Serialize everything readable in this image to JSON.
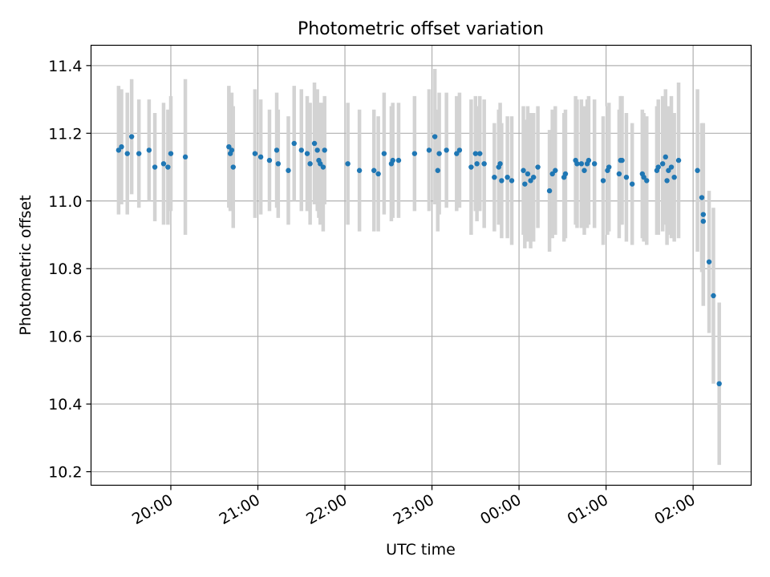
{
  "chart_data": {
    "type": "scatter",
    "title": "Photometric offset variation",
    "xlabel": "UTC time",
    "ylabel": "Photometric offset",
    "x_is_time": true,
    "xlim": [
      "19:05",
      "02:40"
    ],
    "ylim": [
      10.16,
      11.46
    ],
    "xticks": [
      "20:00",
      "21:00",
      "22:00",
      "23:00",
      "00:00",
      "01:00",
      "02:00"
    ],
    "yticks": [
      "10.2",
      "10.4",
      "10.6",
      "10.8",
      "11.0",
      "11.2",
      "11.4"
    ],
    "grid": true,
    "marker_color": "#1f77b4",
    "errorbar_color": "#d3d3d3",
    "points": [
      {
        "x": "19:24",
        "y": 11.15,
        "err": 0.19
      },
      {
        "x": "19:26",
        "y": 11.16,
        "err": 0.17
      },
      {
        "x": "19:30",
        "y": 11.14,
        "err": 0.18
      },
      {
        "x": "19:33",
        "y": 11.19,
        "err": 0.17
      },
      {
        "x": "19:38",
        "y": 11.14,
        "err": 0.16
      },
      {
        "x": "19:45",
        "y": 11.15,
        "err": 0.15
      },
      {
        "x": "19:49",
        "y": 11.1,
        "err": 0.16
      },
      {
        "x": "19:55",
        "y": 11.11,
        "err": 0.18
      },
      {
        "x": "19:58",
        "y": 11.1,
        "err": 0.17
      },
      {
        "x": "20:00",
        "y": 11.14,
        "err": 0.17
      },
      {
        "x": "20:10",
        "y": 11.13,
        "err": 0.23
      },
      {
        "x": "20:40",
        "y": 11.16,
        "err": 0.18
      },
      {
        "x": "20:41",
        "y": 11.14,
        "err": 0.17
      },
      {
        "x": "20:42",
        "y": 11.15,
        "err": 0.17
      },
      {
        "x": "20:43",
        "y": 11.1,
        "err": 0.18
      },
      {
        "x": "20:58",
        "y": 11.14,
        "err": 0.19
      },
      {
        "x": "21:02",
        "y": 11.13,
        "err": 0.17
      },
      {
        "x": "21:08",
        "y": 11.12,
        "err": 0.15
      },
      {
        "x": "21:13",
        "y": 11.15,
        "err": 0.17
      },
      {
        "x": "21:14",
        "y": 11.11,
        "err": 0.16
      },
      {
        "x": "21:21",
        "y": 11.09,
        "err": 0.16
      },
      {
        "x": "21:25",
        "y": 11.17,
        "err": 0.17
      },
      {
        "x": "21:30",
        "y": 11.15,
        "err": 0.18
      },
      {
        "x": "21:34",
        "y": 11.14,
        "err": 0.17
      },
      {
        "x": "21:36",
        "y": 11.11,
        "err": 0.18
      },
      {
        "x": "21:39",
        "y": 11.17,
        "err": 0.18
      },
      {
        "x": "21:41",
        "y": 11.15,
        "err": 0.18
      },
      {
        "x": "21:42",
        "y": 11.12,
        "err": 0.17
      },
      {
        "x": "21:43",
        "y": 11.11,
        "err": 0.18
      },
      {
        "x": "21:45",
        "y": 11.1,
        "err": 0.19
      },
      {
        "x": "21:46",
        "y": 11.15,
        "err": 0.16
      },
      {
        "x": "22:02",
        "y": 11.11,
        "err": 0.18
      },
      {
        "x": "22:10",
        "y": 11.09,
        "err": 0.18
      },
      {
        "x": "22:20",
        "y": 11.09,
        "err": 0.18
      },
      {
        "x": "22:23",
        "y": 11.08,
        "err": 0.17
      },
      {
        "x": "22:27",
        "y": 11.14,
        "err": 0.18
      },
      {
        "x": "22:32",
        "y": 11.11,
        "err": 0.17
      },
      {
        "x": "22:33",
        "y": 11.12,
        "err": 0.17
      },
      {
        "x": "22:37",
        "y": 11.12,
        "err": 0.17
      },
      {
        "x": "22:48",
        "y": 11.14,
        "err": 0.17
      },
      {
        "x": "22:58",
        "y": 11.15,
        "err": 0.18
      },
      {
        "x": "23:02",
        "y": 11.19,
        "err": 0.2
      },
      {
        "x": "23:04",
        "y": 11.09,
        "err": 0.18
      },
      {
        "x": "23:05",
        "y": 11.14,
        "err": 0.18
      },
      {
        "x": "23:10",
        "y": 11.15,
        "err": 0.17
      },
      {
        "x": "23:17",
        "y": 11.14,
        "err": 0.17
      },
      {
        "x": "23:19",
        "y": 11.15,
        "err": 0.17
      },
      {
        "x": "23:27",
        "y": 11.1,
        "err": 0.2
      },
      {
        "x": "23:30",
        "y": 11.14,
        "err": 0.17
      },
      {
        "x": "23:31",
        "y": 11.11,
        "err": 0.17
      },
      {
        "x": "23:33",
        "y": 11.14,
        "err": 0.17
      },
      {
        "x": "23:36",
        "y": 11.11,
        "err": 0.19
      },
      {
        "x": "23:43",
        "y": 11.07,
        "err": 0.16
      },
      {
        "x": "23:46",
        "y": 11.1,
        "err": 0.17
      },
      {
        "x": "23:47",
        "y": 11.11,
        "err": 0.18
      },
      {
        "x": "23:48",
        "y": 11.06,
        "err": 0.17
      },
      {
        "x": "23:52",
        "y": 11.07,
        "err": 0.18
      },
      {
        "x": "23:55",
        "y": 11.06,
        "err": 0.19
      },
      {
        "x": "00:03",
        "y": 11.09,
        "err": 0.19
      },
      {
        "x": "00:04",
        "y": 11.05,
        "err": 0.19
      },
      {
        "x": "00:06",
        "y": 11.08,
        "err": 0.2
      },
      {
        "x": "00:08",
        "y": 11.06,
        "err": 0.2
      },
      {
        "x": "00:10",
        "y": 11.07,
        "err": 0.19
      },
      {
        "x": "00:13",
        "y": 11.1,
        "err": 0.18
      },
      {
        "x": "00:21",
        "y": 11.03,
        "err": 0.18
      },
      {
        "x": "00:23",
        "y": 11.08,
        "err": 0.19
      },
      {
        "x": "00:25",
        "y": 11.09,
        "err": 0.19
      },
      {
        "x": "00:31",
        "y": 11.07,
        "err": 0.19
      },
      {
        "x": "00:32",
        "y": 11.08,
        "err": 0.19
      },
      {
        "x": "00:39",
        "y": 11.12,
        "err": 0.19
      },
      {
        "x": "00:40",
        "y": 11.11,
        "err": 0.19
      },
      {
        "x": "00:43",
        "y": 11.11,
        "err": 0.19
      },
      {
        "x": "00:45",
        "y": 11.09,
        "err": 0.19
      },
      {
        "x": "00:47",
        "y": 11.11,
        "err": 0.19
      },
      {
        "x": "00:48",
        "y": 11.12,
        "err": 0.19
      },
      {
        "x": "00:52",
        "y": 11.11,
        "err": 0.19
      },
      {
        "x": "00:58",
        "y": 11.06,
        "err": 0.19
      },
      {
        "x": "01:01",
        "y": 11.09,
        "err": 0.19
      },
      {
        "x": "01:02",
        "y": 11.1,
        "err": 0.19
      },
      {
        "x": "01:09",
        "y": 11.08,
        "err": 0.19
      },
      {
        "x": "01:10",
        "y": 11.12,
        "err": 0.19
      },
      {
        "x": "01:11",
        "y": 11.12,
        "err": 0.19
      },
      {
        "x": "01:14",
        "y": 11.07,
        "err": 0.19
      },
      {
        "x": "01:18",
        "y": 11.05,
        "err": 0.18
      },
      {
        "x": "01:25",
        "y": 11.08,
        "err": 0.19
      },
      {
        "x": "01:26",
        "y": 11.07,
        "err": 0.19
      },
      {
        "x": "01:28",
        "y": 11.06,
        "err": 0.19
      },
      {
        "x": "01:35",
        "y": 11.09,
        "err": 0.19
      },
      {
        "x": "01:36",
        "y": 11.1,
        "err": 0.2
      },
      {
        "x": "01:39",
        "y": 11.11,
        "err": 0.2
      },
      {
        "x": "01:41",
        "y": 11.13,
        "err": 0.2
      },
      {
        "x": "01:42",
        "y": 11.06,
        "err": 0.19
      },
      {
        "x": "01:43",
        "y": 11.09,
        "err": 0.19
      },
      {
        "x": "01:45",
        "y": 11.1,
        "err": 0.21
      },
      {
        "x": "01:47",
        "y": 11.07,
        "err": 0.19
      },
      {
        "x": "01:50",
        "y": 11.12,
        "err": 0.23
      },
      {
        "x": "02:03",
        "y": 11.09,
        "err": 0.24
      },
      {
        "x": "02:06",
        "y": 11.01,
        "err": 0.22
      },
      {
        "x": "02:07",
        "y": 10.96,
        "err": 0.27
      },
      {
        "x": "02:07",
        "y": 10.94,
        "err": 0.25
      },
      {
        "x": "02:11",
        "y": 10.82,
        "err": 0.21
      },
      {
        "x": "02:14",
        "y": 10.72,
        "err": 0.26
      },
      {
        "x": "02:18",
        "y": 10.46,
        "err": 0.24
      }
    ]
  }
}
